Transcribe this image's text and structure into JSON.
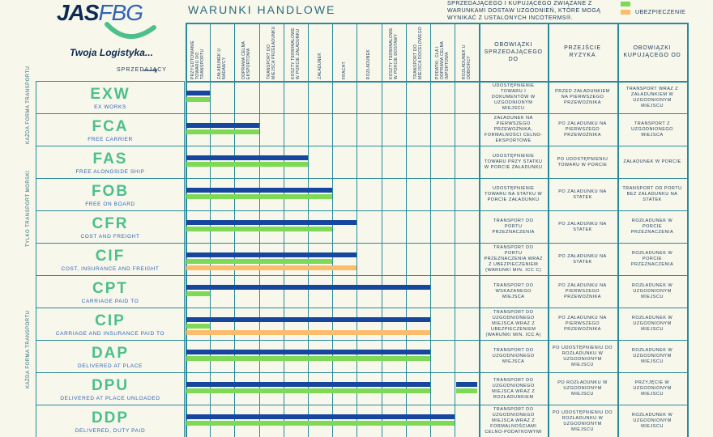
{
  "logo": {
    "part1": "JAS",
    "part2": "FBG",
    "tagline": "Twoja Logistyka..."
  },
  "title": "WARUNKI HANDLOWE",
  "note": "SPRZEDAJĄCEGO I KUPUJĄCEGO ZWIĄZANE Z WARUNKAMI DOSTAW UZGODNIEŃ, KTÓRE MOGĄ WYNIKAĆ Z USTALONYCH INCOTERMS®.",
  "legend": [
    {
      "label": "",
      "color": "#7ed957"
    },
    {
      "label": "UBEZPIECZENIE",
      "color": "#fbbd6c"
    }
  ],
  "seller_label": "SPRZEDAJĄCY",
  "side_labels": {
    "any_transport_top": "KAŻDA FORMA TRANSPORTU",
    "sea_only": "TYLKO TRANSPORT MORSKI",
    "any_transport_bottom": "KAŻDA FORMA TRANSPORTU"
  },
  "columns": [
    "PRZYGOTOWANIE TOWARU DO TRANSPORTU",
    "ZAŁADUNEK U NADAWCY",
    "ODPRAWA CELNA EKSPORTOWA",
    "TRANSPORT DO MIEJSCA PRZEŁADUNKU",
    "KOSZTY TERMINALOWE W PORCIE ZAŁADUNKU",
    "ZAŁADUNEK",
    "FRACHT",
    "ROZŁADUNEK",
    "KOSZTY TERMINALOWE W PORCIE DOSTAWY",
    "TRANSPORT DO MIEJSCA DOCELOWEGO",
    "PODATKI, CŁA I ODPRAWA CELNA IMPORTOWA",
    "ROZŁADUNEK U ODBIORCY"
  ],
  "big_columns": [
    "OBOWIĄZKI SPRZEDAJĄCEGO DO",
    "PRZEJŚCIE RYZYKA",
    "OBOWIĄZKI KUPUJĄCEGO OD"
  ],
  "terms": [
    {
      "code": "EXW",
      "name": "EX WORKS",
      "seller": "UDOSTĘPNIENIE TOWARU I DOKUMENTÓW W UZGODNIONYM MIEJSCU",
      "risk": "PRZED ZAŁADUNKIEM NA PIERWSZEGO PRZEWOŹNIKA",
      "buyer": "TRANSPORT WRAZ Z ZAŁADUNKIEM W UZGODNIONYM MIEJSCU",
      "blue": 1,
      "green": 1,
      "orange": 0
    },
    {
      "code": "FCA",
      "name": "FREE CARRIER",
      "seller": "ZAŁADUNEK NA PIERWSZEGO PRZEWOŹNIKA, FORMALNOŚCI CELNO-EKSPORTOWE",
      "risk": "PO ZAŁADUNKU NA PIERWSZEGO PRZEWOŹNIKA",
      "buyer": "TRANSPORT Z UZGODNIONEGO MIEJSCA",
      "blue": 3,
      "green": 3,
      "orange": 0
    },
    {
      "code": "FAS",
      "name": "FREE ALONGSIDE SHIP",
      "seller": "UDOSTĘPNIENIE TOWARU PRZY STATKU W PORCIE ZAŁADUNKU",
      "risk": "PO UDOSTĘPNIENIU TOWARU W PORCIE",
      "buyer": "ZAŁADUNEK W PORCIE",
      "blue": 5,
      "green": 5,
      "orange": 0
    },
    {
      "code": "FOB",
      "name": "FREE ON BOARD",
      "seller": "UDOSTĘPNIENIE TOWARU NA STATKU W PORCIE ZAŁADUNKU",
      "risk": "PO ZAŁADUNKU NA STATEK",
      "buyer": "TRANSPORT OD PORTU BEZ ZAŁADUNKU NA STATEK",
      "blue": 6,
      "green": 6,
      "orange": 0
    },
    {
      "code": "CFR",
      "name": "COST AND FREIGHT",
      "seller": "TRANSPORT DO PORTU PRZEZNACZENIA",
      "risk": "PO ZAŁADUNKU NA STATEK",
      "buyer": "ROZŁADUNEK W PORCIE PRZEZNACZENIA",
      "blue": 7,
      "green": 6,
      "orange": 0
    },
    {
      "code": "CIF",
      "name": "COST, INSURANCE AND FREIGHT",
      "seller": "TRANSPORT DO PORTU PRZEZNACZENIA WRAZ Z UBEZPIECZENIEM (WARUNKI MIN. ICC C)",
      "risk": "PO ZAŁADUNKU NA STATEK",
      "buyer": "ROZŁADUNEK W PORCIE PRZEZNACZENIA",
      "blue": 7,
      "green": 6,
      "orange": 7
    },
    {
      "code": "CPT",
      "name": "CARRIAGE PAID TO",
      "seller": "TRANSPORT DO WSKAZANEGO MIEJSCA",
      "risk": "PO ZAŁADUNKU NA PIERWSZEGO PRZEWOŹNIKA",
      "buyer": "ROZŁADUNEK W UZGODNIONYM MIEJSCU",
      "blue": 10,
      "green": 1,
      "orange": 0
    },
    {
      "code": "CIP",
      "name": "CARRIAGE AND INSURANCE PAID TO",
      "seller": "TRANSPORT DO UZGODNIONEGO MIEJSCA WRAZ Z UBEZPIECZENIEM (WARUNKI MIN. ICC A)",
      "risk": "PO ZAŁADUNKU NA PIERWSZEGO PRZEWOŹNIKA",
      "buyer": "ROZŁADUNEK W UZGODNIONYM MIEJSCU",
      "blue": 10,
      "green": 1,
      "orange": 10
    },
    {
      "code": "DAP",
      "name": "DELIVERED AT PLACE",
      "seller": "TRANSPORT DO UZGODNIONEGO MIEJSCA",
      "risk": "PO UDOSTĘPNIENIU DO ROZŁADUNKU W UZGODNIONYM MIEJSCU",
      "buyer": "ROZŁADUNEK W UZGODNIONYM MIEJSCU",
      "blue": 10,
      "green": 10,
      "orange": 0
    },
    {
      "code": "DPU",
      "name": "DELIVERED AT PLACE UNLOADED",
      "seller": "TRANSPORT DO UZGODNIONEGO MIEJSCA WRAZ Z ROZŁADUNKIEM",
      "risk": "PO ROZŁADUNKU W UZGODNIONYM MIEJSCU",
      "buyer": "PRZYJĘCIE W UZGODNIONYM MIEJSCU",
      "blue": 10,
      "green": 10,
      "orange": 0,
      "extra_blue": true
    },
    {
      "code": "DDP",
      "name": "DELIVERED, DUTY PAID",
      "seller": "TRANSPORT DO UZGODNIONEGO MIEJSCA WRAZ Z FORMALNOŚCIAMI CELNO-PODATKOWYMI",
      "risk": "PO UDOSTĘPNIENIU DO ROZŁADUNKU W UZGODNIONYM MIEJSCU",
      "buyer": "ROZŁADUNEK W UZGODNIONYM MIEJSCU",
      "blue": 11,
      "green": 11,
      "orange": 0
    }
  ]
}
